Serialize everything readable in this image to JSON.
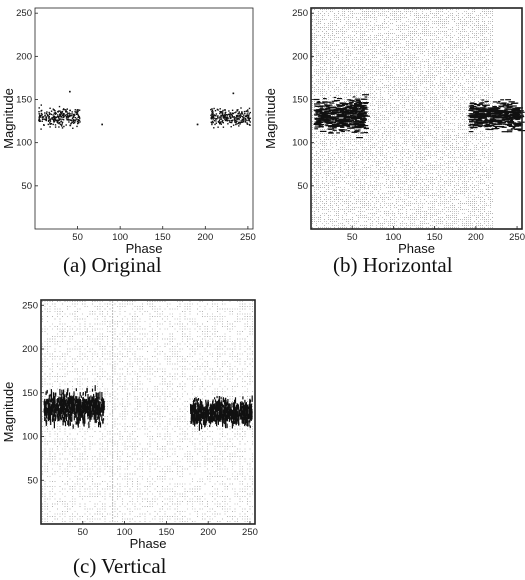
{
  "chart_data": [
    {
      "type": "heatmap",
      "panel": "a",
      "caption": "(a) Original",
      "xlabel": "Phase",
      "ylabel": "Magnitude",
      "xlim": [
        0,
        256
      ],
      "ylim": [
        0,
        256
      ],
      "xticks": [
        50,
        100,
        150,
        200,
        250
      ],
      "yticks": [
        50,
        100,
        150,
        200,
        250
      ],
      "background": "none",
      "clusters": [
        {
          "x": [
            3,
            52
          ],
          "y": [
            115,
            145
          ],
          "density": "medium"
        },
        {
          "x": [
            205,
            252
          ],
          "y": [
            115,
            145
          ],
          "density": "medium"
        }
      ]
    },
    {
      "type": "heatmap",
      "panel": "b",
      "caption": "(b) Horizontal",
      "xlabel": "Phase",
      "ylabel": "Magnitude",
      "xlim": [
        0,
        256
      ],
      "ylim": [
        0,
        256
      ],
      "xticks": [
        50,
        100,
        150,
        200,
        250
      ],
      "yticks": [
        50,
        100,
        150,
        200,
        250
      ],
      "background": "dense light-gray texture, x 0-222",
      "clusters": [
        {
          "x": [
            3,
            65
          ],
          "y": [
            105,
            160
          ],
          "density": "high"
        },
        {
          "x": [
            190,
            252
          ],
          "y": [
            110,
            155
          ],
          "density": "high"
        }
      ]
    },
    {
      "type": "heatmap",
      "panel": "c",
      "caption": "(c) Vertical",
      "xlabel": "Phase",
      "ylabel": "Magnitude",
      "xlim": [
        0,
        256
      ],
      "ylim": [
        0,
        256
      ],
      "xticks": [
        50,
        100,
        150,
        200,
        250
      ],
      "yticks": [
        50,
        100,
        150,
        200,
        250
      ],
      "background": "light-gray texture, full width",
      "clusters": [
        {
          "x": [
            3,
            75
          ],
          "y": [
            110,
            160
          ],
          "density": "very high"
        },
        {
          "x": [
            178,
            252
          ],
          "y": [
            110,
            150
          ],
          "density": "very high"
        }
      ]
    }
  ],
  "colors": {
    "ink": "#111111",
    "texture": "#c8c8c8",
    "texture_dense": "#b4b4b4"
  }
}
